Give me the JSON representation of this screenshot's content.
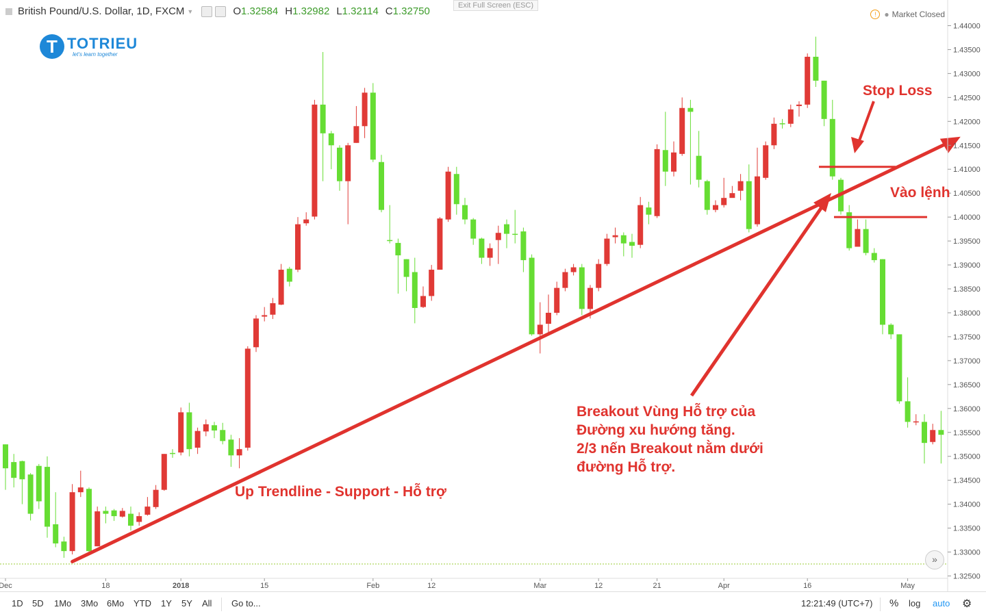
{
  "header": {
    "symbol": "British Pound/U.S. Dollar, 1D, FXCM",
    "open_label": "O",
    "open": "1.32584",
    "high_label": "H",
    "high": "1.32982",
    "low_label": "L",
    "low": "1.32114",
    "close_label": "C",
    "close": "1.32750"
  },
  "exit_fullscreen": "Exit Full Screen (ESC)",
  "market_status": "Market Closed",
  "logo": {
    "name": "TOTRIEU",
    "slogan": "let's learn together"
  },
  "annotations": {
    "trendline": "Up Trendline - Support - Hỗ trợ",
    "stop_loss": "Stop Loss",
    "entry": "Vào lệnh",
    "breakout": [
      "Breakout Vùng Hỗ trợ của",
      "Đường xu hướng tăng.",
      "2/3 nến Breakout nằm dưới",
      "đường Hỗ trợ."
    ]
  },
  "toolbar": {
    "ranges": [
      "1D",
      "5D",
      "1Mo",
      "3Mo",
      "6Mo",
      "YTD",
      "1Y",
      "5Y",
      "All"
    ],
    "goto": "Go to...",
    "time": "12:21:49 (UTC+7)",
    "percent": "%",
    "log": "log",
    "auto": "auto"
  },
  "colors": {
    "up": "#66dd33",
    "down": "#e03a36",
    "annotation": "#e0332e",
    "price_line": "#99cc33"
  },
  "chart_data": {
    "type": "candlestick",
    "x_tick_labels": [
      "Dec",
      "18",
      "2018",
      "15",
      "Feb",
      "12",
      "Mar",
      "12",
      "21",
      "Apr",
      "16",
      "May"
    ],
    "x_tick_index": [
      0,
      12,
      21,
      31,
      44,
      51,
      64,
      71,
      78,
      86,
      96,
      108
    ],
    "y_ticks": [
      1.325,
      1.33,
      1.335,
      1.34,
      1.345,
      1.35,
      1.355,
      1.36,
      1.365,
      1.37,
      1.375,
      1.38,
      1.385,
      1.39,
      1.395,
      1.4,
      1.405,
      1.41,
      1.415,
      1.42,
      1.425,
      1.43,
      1.435,
      1.44
    ],
    "ylim": [
      1.3245,
      1.4415
    ],
    "current_price": 1.3275,
    "candles": [
      [
        1.3475,
        1.3525,
        1.343,
        1.3525
      ],
      [
        1.3455,
        1.3505,
        1.3435,
        1.3488
      ],
      [
        1.3452,
        1.3491,
        1.34,
        1.349
      ],
      [
        1.338,
        1.3465,
        1.3366,
        1.3462
      ],
      [
        1.3406,
        1.3484,
        1.339,
        1.348
      ],
      [
        1.3353,
        1.35,
        1.333,
        1.3478
      ],
      [
        1.3318,
        1.3425,
        1.331,
        1.3358
      ],
      [
        1.3302,
        1.3332,
        1.3288,
        1.3322
      ],
      [
        1.3425,
        1.3442,
        1.3295,
        1.3302
      ],
      [
        1.3435,
        1.347,
        1.3415,
        1.3425
      ],
      [
        1.3302,
        1.3435,
        1.33,
        1.3432
      ],
      [
        1.3385,
        1.3395,
        1.3312,
        1.3312
      ],
      [
        1.338,
        1.3395,
        1.336,
        1.3386
      ],
      [
        1.3375,
        1.339,
        1.3365,
        1.3387
      ],
      [
        1.3386,
        1.3392,
        1.3372,
        1.3374
      ],
      [
        1.3355,
        1.3395,
        1.3345,
        1.338
      ],
      [
        1.3375,
        1.3383,
        1.3355,
        1.3363
      ],
      [
        1.3395,
        1.3415,
        1.3376,
        1.3378
      ],
      [
        1.343,
        1.344,
        1.339,
        1.3394
      ],
      [
        1.3505,
        1.3505,
        1.3428,
        1.343
      ],
      [
        1.3505,
        1.3515,
        1.3497,
        1.3507
      ],
      [
        1.3592,
        1.3602,
        1.3502,
        1.3508
      ],
      [
        1.3515,
        1.3612,
        1.35,
        1.3592
      ],
      [
        1.3553,
        1.356,
        1.3505,
        1.3518
      ],
      [
        1.3567,
        1.3577,
        1.3542,
        1.3552
      ],
      [
        1.3554,
        1.3572,
        1.3538,
        1.3565
      ],
      [
        1.3532,
        1.357,
        1.3525,
        1.3555
      ],
      [
        1.3502,
        1.3545,
        1.3478,
        1.3535
      ],
      [
        1.3515,
        1.3538,
        1.3475,
        1.3502
      ],
      [
        1.3725,
        1.373,
        1.3512,
        1.3518
      ],
      [
        1.3788,
        1.3795,
        1.3718,
        1.3728
      ],
      [
        1.3795,
        1.3812,
        1.3782,
        1.3792
      ],
      [
        1.382,
        1.3831,
        1.3787,
        1.3796
      ],
      [
        1.389,
        1.3902,
        1.3816,
        1.3817
      ],
      [
        1.3865,
        1.3896,
        1.3855,
        1.3892
      ],
      [
        1.3985,
        1.4,
        1.3885,
        1.389
      ],
      [
        1.3995,
        1.401,
        1.3982,
        1.3987
      ],
      [
        1.4235,
        1.4245,
        1.3995,
        1.4001
      ],
      [
        1.4175,
        1.4345,
        1.4075,
        1.4235
      ],
      [
        1.415,
        1.418,
        1.41,
        1.4175
      ],
      [
        1.4075,
        1.415,
        1.4055,
        1.4145
      ],
      [
        1.415,
        1.4155,
        1.3985,
        1.4075
      ],
      [
        1.419,
        1.4232,
        1.4155,
        1.4155
      ],
      [
        1.426,
        1.427,
        1.4165,
        1.419
      ],
      [
        1.412,
        1.428,
        1.4115,
        1.426
      ],
      [
        1.4015,
        1.413,
        1.401,
        1.4115
      ],
      [
        1.3952,
        1.4025,
        1.3945,
        1.3952
      ],
      [
        1.392,
        1.3955,
        1.384,
        1.3946
      ],
      [
        1.3875,
        1.3912,
        1.3845,
        1.3912
      ],
      [
        1.381,
        1.3915,
        1.3778,
        1.3885
      ],
      [
        1.3835,
        1.3855,
        1.381,
        1.3812
      ],
      [
        1.389,
        1.39,
        1.3825,
        1.3835
      ],
      [
        1.3997,
        1.4,
        1.389,
        1.389
      ],
      [
        1.4095,
        1.4105,
        1.399,
        1.3995
      ],
      [
        1.4027,
        1.4105,
        1.4005,
        1.409
      ],
      [
        1.3995,
        1.404,
        1.3985,
        1.4025
      ],
      [
        1.3955,
        1.3998,
        1.3942,
        1.3995
      ],
      [
        1.3915,
        1.3957,
        1.3902,
        1.3955
      ],
      [
        1.3935,
        1.3945,
        1.3898,
        1.3915
      ],
      [
        1.3967,
        1.3982,
        1.3902,
        1.3952
      ],
      [
        1.3965,
        1.3995,
        1.3935,
        1.3985
      ],
      [
        1.3965,
        1.4015,
        1.3945,
        1.3965
      ],
      [
        1.391,
        1.3978,
        1.3885,
        1.397
      ],
      [
        1.3755,
        1.3922,
        1.3752,
        1.3915
      ],
      [
        1.3775,
        1.3822,
        1.3715,
        1.3755
      ],
      [
        1.38,
        1.3838,
        1.3755,
        1.3777
      ],
      [
        1.3852,
        1.3865,
        1.3795,
        1.38
      ],
      [
        1.3885,
        1.3892,
        1.3845,
        1.3852
      ],
      [
        1.3895,
        1.3902,
        1.3878,
        1.3885
      ],
      [
        1.3808,
        1.3902,
        1.3795,
        1.3895
      ],
      [
        1.3852,
        1.3858,
        1.3788,
        1.3808
      ],
      [
        1.3902,
        1.3912,
        1.3845,
        1.3852
      ],
      [
        1.3955,
        1.3965,
        1.3898,
        1.3902
      ],
      [
        1.3962,
        1.3978,
        1.3945,
        1.3958
      ],
      [
        1.3945,
        1.3968,
        1.3918,
        1.3962
      ],
      [
        1.394,
        1.3965,
        1.3915,
        1.3948
      ],
      [
        1.4025,
        1.4042,
        1.3935,
        1.3942
      ],
      [
        1.4005,
        1.4032,
        1.3985,
        1.402
      ],
      [
        1.4142,
        1.4152,
        1.3998,
        1.4002
      ],
      [
        1.4095,
        1.422,
        1.4065,
        1.414
      ],
      [
        1.4135,
        1.4158,
        1.4085,
        1.4095
      ],
      [
        1.4228,
        1.425,
        1.4128,
        1.4132
      ],
      [
        1.422,
        1.4245,
        1.4068,
        1.4228
      ],
      [
        1.4078,
        1.418,
        1.4062,
        1.4128
      ],
      [
        1.4015,
        1.4078,
        1.4005,
        1.4075
      ],
      [
        1.4025,
        1.4035,
        1.401,
        1.4015
      ],
      [
        1.404,
        1.4082,
        1.402,
        1.4025
      ],
      [
        1.405,
        1.4065,
        1.4042,
        1.404
      ],
      [
        1.4075,
        1.409,
        1.4035,
        1.4055
      ],
      [
        1.3975,
        1.411,
        1.3968,
        1.4075
      ],
      [
        1.4085,
        1.4145,
        1.398,
        1.3985
      ],
      [
        1.415,
        1.4158,
        1.4078,
        1.4082
      ],
      [
        1.4195,
        1.4208,
        1.4142,
        1.415
      ],
      [
        1.4195,
        1.4205,
        1.4185,
        1.4196
      ],
      [
        1.4225,
        1.4235,
        1.4188,
        1.4195
      ],
      [
        1.4235,
        1.4242,
        1.421,
        1.4232
      ],
      [
        1.4335,
        1.4342,
        1.4228,
        1.4235
      ],
      [
        1.4285,
        1.4377,
        1.4272,
        1.4335
      ],
      [
        1.4205,
        1.4285,
        1.419,
        1.4285
      ],
      [
        1.4085,
        1.4245,
        1.4078,
        1.4205
      ],
      [
        1.4012,
        1.4082,
        1.4005,
        1.4078
      ],
      [
        1.3935,
        1.4025,
        1.393,
        1.401
      ],
      [
        1.3975,
        1.3995,
        1.3942,
        1.3938
      ],
      [
        1.3925,
        1.3995,
        1.392,
        1.3975
      ],
      [
        1.391,
        1.3935,
        1.3905,
        1.3925
      ],
      [
        1.3775,
        1.3912,
        1.3755,
        1.3912
      ],
      [
        1.3755,
        1.3778,
        1.3745,
        1.3775
      ],
      [
        1.3615,
        1.3755,
        1.361,
        1.3755
      ],
      [
        1.3572,
        1.3665,
        1.356,
        1.3615
      ],
      [
        1.3573,
        1.3588,
        1.3565,
        1.3572
      ],
      [
        1.3528,
        1.3588,
        1.3485,
        1.3572
      ],
      [
        1.3555,
        1.3568,
        1.3525,
        1.353
      ],
      [
        1.3545,
        1.3595,
        1.3485,
        1.3555
      ]
    ],
    "trendline": {
      "from": [
        8,
        1.328
      ],
      "to": [
        114,
        1.4165
      ]
    },
    "stop_loss_level": 1.4105,
    "entry_level": 1.4
  }
}
